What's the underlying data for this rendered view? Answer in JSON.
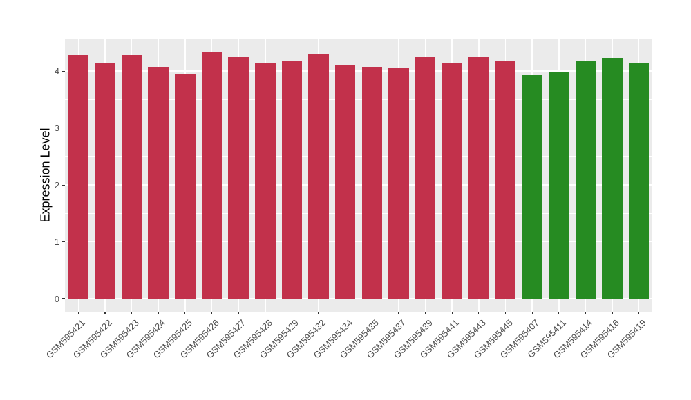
{
  "chart_data": {
    "type": "bar",
    "title": "",
    "xlabel": "",
    "ylabel": "Expression Level",
    "categories": [
      "GSM595421",
      "GSM595422",
      "GSM595423",
      "GSM595424",
      "GSM595425",
      "GSM595426",
      "GSM595427",
      "GSM595428",
      "GSM595429",
      "GSM595432",
      "GSM595434",
      "GSM595435",
      "GSM595437",
      "GSM595439",
      "GSM595441",
      "GSM595443",
      "GSM595445",
      "GSM595407",
      "GSM595411",
      "GSM595414",
      "GSM595416",
      "GSM595419"
    ],
    "values": [
      4.28,
      4.14,
      4.28,
      4.07,
      3.95,
      4.34,
      4.24,
      4.13,
      4.17,
      4.3,
      4.11,
      4.08,
      4.06,
      4.24,
      4.13,
      4.25,
      4.17,
      3.93,
      3.99,
      4.19,
      4.23,
      4.14
    ],
    "bar_groups": [
      "red",
      "red",
      "red",
      "red",
      "red",
      "red",
      "red",
      "red",
      "red",
      "red",
      "red",
      "red",
      "red",
      "red",
      "red",
      "red",
      "red",
      "green",
      "green",
      "green",
      "green",
      "green"
    ],
    "palette": {
      "red": "#C2314B",
      "green": "#268B22"
    },
    "y_ticks": [
      "0",
      "1",
      "2",
      "3",
      "4"
    ],
    "y_tick_values": [
      0,
      1,
      2,
      3,
      4
    ],
    "y_minor_tick_values": [
      0.5,
      1.5,
      2.5,
      3.5,
      4.5
    ],
    "ylim": [
      -0.23,
      4.56
    ],
    "grid": true,
    "legend_position": "none",
    "panel_background": "#EBEBEB",
    "gridline_color": "#FFFFFF",
    "tick_text_color": "#4D4D4D",
    "tick_mark_color": "#333333"
  }
}
